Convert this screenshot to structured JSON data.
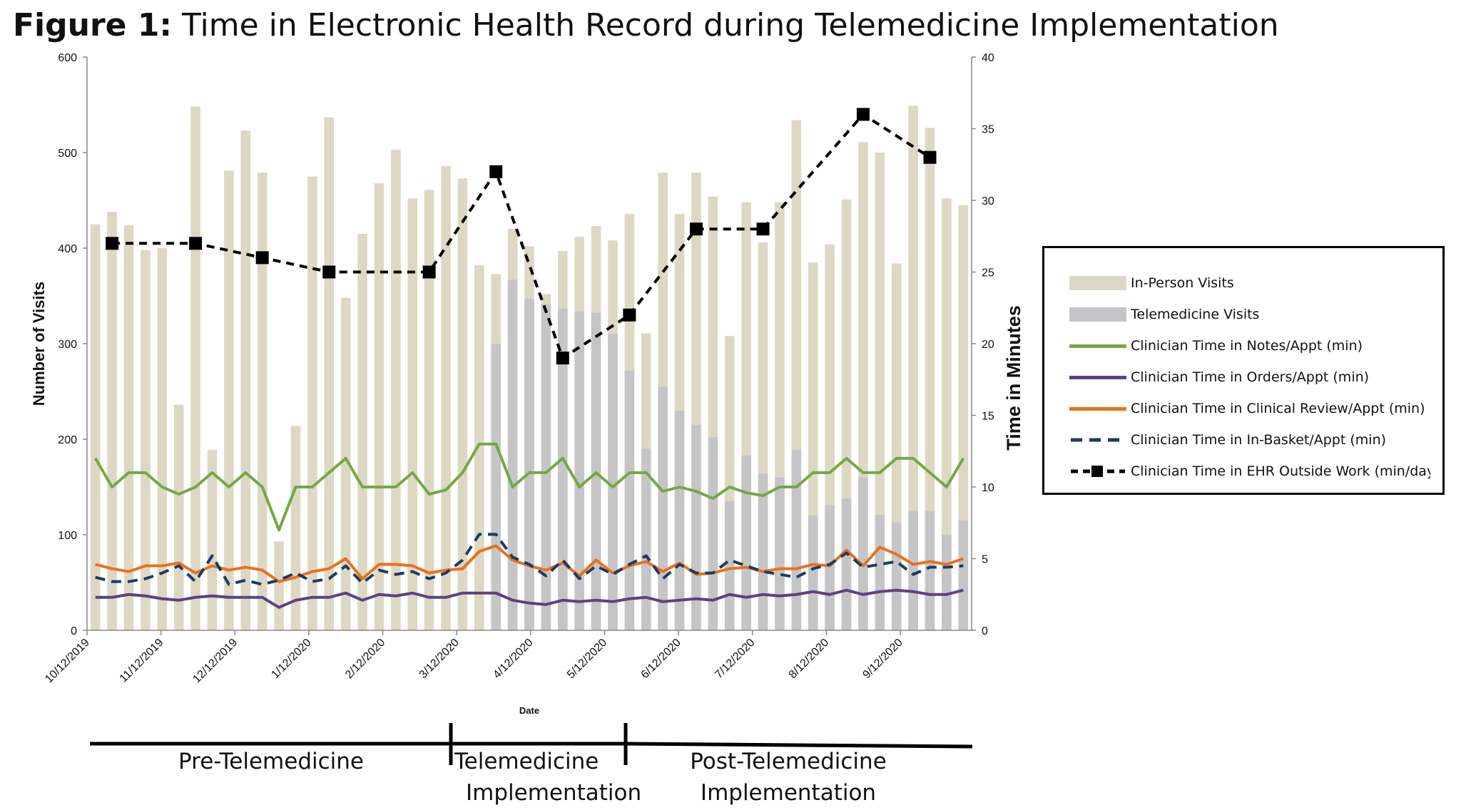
{
  "figure": {
    "title_bold": "Figure 1:",
    "title_rest": " Time in Electronic Health Record during Telemedicine Implementation"
  },
  "chart_data": {
    "type": "bar",
    "title": "Figure 1: Time in Electronic Health Record during Telemedicine Implementation",
    "xlabel": "Date",
    "ylabel": "Number of Visits",
    "y2label": "Time in Minutes",
    "ylim": [
      0,
      600
    ],
    "y2lim": [
      0,
      40
    ],
    "yticks": [
      0,
      100,
      200,
      300,
      400,
      500,
      600
    ],
    "y2ticks": [
      0,
      5,
      10,
      15,
      20,
      25,
      30,
      35,
      40
    ],
    "xticks": [
      "10/12/2019",
      "11/12/2019",
      "12/12/2019",
      "1/12/2020",
      "2/12/2020",
      "3/12/2020",
      "4/12/2020",
      "5/12/2020",
      "6/12/2020",
      "7/12/2020",
      "8/12/2020",
      "9/12/2020"
    ],
    "grid": false,
    "legend_position": "right",
    "colors": {
      "in_person": "#ddd8c4",
      "telemedicine": "#c5c5c8",
      "notes": "#77a743",
      "orders": "#5d4280",
      "clinical_review": "#e9711c",
      "in_basket": "#1f3a5f",
      "outside_work": "#000000"
    },
    "bar_series": [
      {
        "name": "In-Person Visits",
        "values": [
          425,
          438,
          424,
          398,
          400,
          236,
          548,
          189,
          481,
          523,
          479,
          93,
          214,
          475,
          537,
          348,
          415,
          468,
          503,
          452,
          461,
          486,
          473,
          382,
          373,
          420,
          402,
          352,
          397,
          412,
          423,
          408,
          436,
          311,
          479,
          436,
          479,
          454,
          308,
          448,
          406,
          448,
          534,
          385,
          404,
          451,
          511,
          500,
          384,
          549,
          526,
          452,
          445
        ]
      },
      {
        "name": "Telemedicine Visits",
        "values": [
          0,
          0,
          0,
          0,
          0,
          0,
          0,
          0,
          0,
          0,
          0,
          0,
          0,
          0,
          0,
          0,
          0,
          0,
          0,
          0,
          0,
          0,
          0,
          0,
          300,
          367,
          347,
          341,
          337,
          334,
          332,
          310,
          272,
          190,
          255,
          230,
          215,
          202,
          135,
          183,
          164,
          160,
          189,
          120,
          131,
          138,
          160,
          121,
          113,
          125,
          125,
          100,
          115
        ]
      }
    ],
    "line_series": [
      {
        "name": "Clinician Time in Notes/Appt (min)",
        "values": [
          12,
          10,
          11,
          11,
          10,
          9.5,
          10,
          11,
          10,
          11,
          10,
          7,
          10,
          10,
          11,
          12,
          10,
          10,
          10,
          11,
          9.5,
          9.8,
          11,
          13,
          13,
          10,
          11,
          11,
          12,
          10,
          11,
          10,
          11,
          11,
          9.7,
          10,
          9.7,
          9.2,
          10,
          9.6,
          9.4,
          10,
          10,
          11,
          11,
          12,
          11,
          11,
          12,
          12,
          11,
          10,
          12
        ]
      },
      {
        "name": "Clinician Time in Orders/Appt (min)",
        "values": [
          2.3,
          2.3,
          2.5,
          2.4,
          2.2,
          2.1,
          2.3,
          2.4,
          2.3,
          2.3,
          2.3,
          1.6,
          2.1,
          2.3,
          2.3,
          2.6,
          2.1,
          2.5,
          2.4,
          2.6,
          2.3,
          2.3,
          2.6,
          2.6,
          2.6,
          2.1,
          1.9,
          1.8,
          2.1,
          2.0,
          2.1,
          2.0,
          2.2,
          2.3,
          2.0,
          2.1,
          2.2,
          2.1,
          2.5,
          2.3,
          2.5,
          2.4,
          2.5,
          2.7,
          2.5,
          2.8,
          2.5,
          2.7,
          2.8,
          2.7,
          2.5,
          2.5,
          2.8
        ]
      },
      {
        "name": "Clinician Time in Clinical Review/Appt (min)",
        "values": [
          4.6,
          4.3,
          4.1,
          4.5,
          4.5,
          4.7,
          4.0,
          4.5,
          4.2,
          4.4,
          4.2,
          3.4,
          3.7,
          4.1,
          4.3,
          5.0,
          3.6,
          4.6,
          4.6,
          4.5,
          4.0,
          4.2,
          4.3,
          5.5,
          5.9,
          4.9,
          4.5,
          4.2,
          4.7,
          3.8,
          4.9,
          4.0,
          4.5,
          4.8,
          4.1,
          4.7,
          3.9,
          4.0,
          4.3,
          4.4,
          4.1,
          4.3,
          4.3,
          4.6,
          4.5,
          5.6,
          4.5,
          5.8,
          5.3,
          4.6,
          4.8,
          4.6,
          5.0
        ]
      },
      {
        "name": "Clinician Time in In-Basket/Appt (min)",
        "values": [
          3.7,
          3.4,
          3.4,
          3.6,
          4.0,
          4.5,
          3.4,
          5.2,
          3.2,
          3.5,
          3.2,
          3.5,
          4.0,
          3.4,
          3.6,
          4.5,
          3.3,
          4.2,
          3.9,
          4.1,
          3.6,
          4.0,
          4.9,
          6.7,
          6.7,
          5.1,
          4.6,
          3.8,
          4.9,
          3.6,
          4.5,
          3.9,
          4.6,
          5.2,
          3.6,
          4.6,
          4.0,
          4.0,
          4.9,
          4.5,
          4.1,
          3.9,
          3.7,
          4.3,
          4.6,
          5.4,
          4.4,
          4.6,
          4.8,
          3.9,
          4.4,
          4.4,
          4.5
        ]
      },
      {
        "name": "Clinician Time in EHR Outside Work (min/day)",
        "values": [
          null,
          27,
          null,
          null,
          null,
          null,
          27,
          null,
          null,
          null,
          26,
          null,
          null,
          null,
          25,
          null,
          null,
          null,
          null,
          null,
          25,
          null,
          null,
          null,
          32,
          null,
          null,
          null,
          19,
          null,
          null,
          null,
          22,
          null,
          null,
          null,
          28,
          null,
          null,
          null,
          28,
          null,
          null,
          null,
          null,
          null,
          36,
          null,
          null,
          null,
          33,
          null,
          null
        ]
      }
    ]
  },
  "legend": {
    "items": [
      "In-Person Visits",
      "Telemedicine Visits",
      "Clinician Time in Notes/Appt (min)",
      "Clinician Time in Orders/Appt (min)",
      "Clinician Time in Clinical Review/Appt (min)",
      "Clinician Time in In-Basket/Appt (min)",
      "Clinician Time in EHR Outside Work (min/day)"
    ]
  },
  "phases": {
    "pre_label": "Pre-Telemedicine",
    "impl_line1": "Telemedicine",
    "impl_line2": "Implementation",
    "post_line1": "Post-Telemedicine",
    "post_line2": "Implementation"
  }
}
